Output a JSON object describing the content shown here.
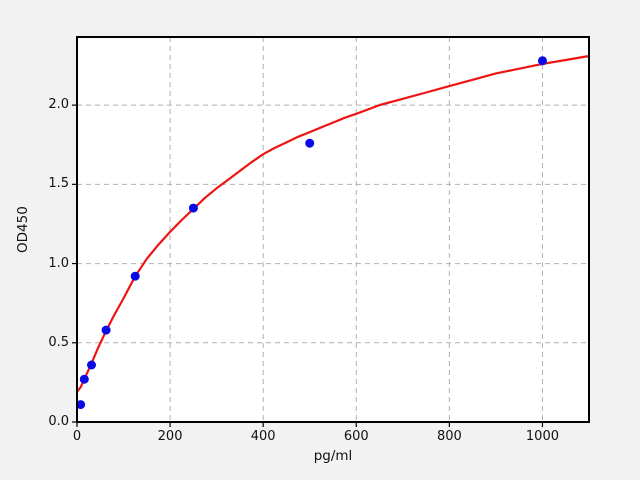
{
  "figure": {
    "background": "#f2f2f2",
    "plot_background": "#ffffff",
    "grid_color": "#b0b0b0",
    "spine_color": "#000000",
    "tick_label_color": "#111111",
    "point_color": "#0a0ae8",
    "curve_color": "#ee1414"
  },
  "chart_data": {
    "type": "scatter",
    "title": "",
    "xlabel": "pg/ml",
    "ylabel": "OD450",
    "xlim": [
      0,
      1100
    ],
    "ylim": [
      0,
      2.43
    ],
    "grid": true,
    "legend": "none",
    "xticks": {
      "values": [
        0,
        200,
        400,
        600,
        800,
        1000
      ],
      "labels": [
        "0",
        "200",
        "400",
        "600",
        "800",
        "1000"
      ]
    },
    "yticks": {
      "values": [
        0.0,
        0.5,
        1.0,
        1.5,
        2.0
      ],
      "labels": [
        "0.0",
        "0.5",
        "1.0",
        "1.5",
        "2.0"
      ]
    },
    "series": [
      {
        "name": "standards",
        "type": "scatter",
        "marker": "circle",
        "points": [
          [
            7.8,
            0.11
          ],
          [
            15.6,
            0.27
          ],
          [
            31.25,
            0.36
          ],
          [
            62.5,
            0.58
          ],
          [
            125,
            0.92
          ],
          [
            250,
            1.35
          ],
          [
            500,
            1.76
          ],
          [
            1000,
            2.28
          ]
        ]
      },
      {
        "name": "fit_curve",
        "type": "line",
        "points": [
          [
            0,
            0.19
          ],
          [
            8,
            0.22
          ],
          [
            15.6,
            0.27
          ],
          [
            31.25,
            0.37
          ],
          [
            45,
            0.465
          ],
          [
            62.5,
            0.575
          ],
          [
            80,
            0.675
          ],
          [
            100,
            0.78
          ],
          [
            125,
            0.92
          ],
          [
            150,
            1.03
          ],
          [
            175,
            1.12
          ],
          [
            200,
            1.2
          ],
          [
            225,
            1.275
          ],
          [
            250,
            1.345
          ],
          [
            275,
            1.415
          ],
          [
            300,
            1.475
          ],
          [
            325,
            1.53
          ],
          [
            350,
            1.585
          ],
          [
            375,
            1.64
          ],
          [
            400,
            1.69
          ],
          [
            425,
            1.73
          ],
          [
            450,
            1.765
          ],
          [
            475,
            1.8
          ],
          [
            500,
            1.83
          ],
          [
            525,
            1.86
          ],
          [
            550,
            1.89
          ],
          [
            575,
            1.92
          ],
          [
            600,
            1.945
          ],
          [
            650,
            2.0
          ],
          [
            700,
            2.04
          ],
          [
            750,
            2.08
          ],
          [
            800,
            2.12
          ],
          [
            850,
            2.16
          ],
          [
            900,
            2.2
          ],
          [
            950,
            2.23
          ],
          [
            1000,
            2.26
          ],
          [
            1050,
            2.285
          ],
          [
            1100,
            2.31
          ]
        ]
      }
    ]
  }
}
